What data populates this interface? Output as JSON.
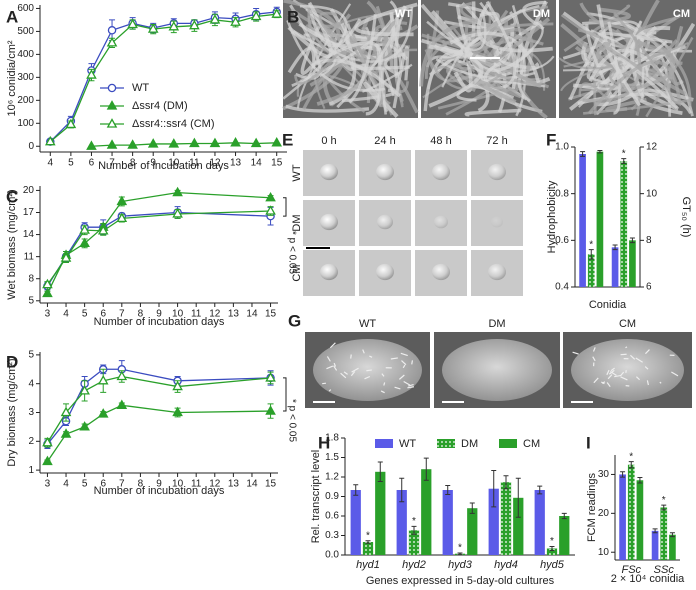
{
  "panels": [
    "A",
    "B",
    "C",
    "D",
    "E",
    "F",
    "G",
    "H",
    "I"
  ],
  "images": {
    "B": {
      "labels": [
        "WT",
        "DM",
        "CM"
      ]
    },
    "E": {
      "columns": [
        "0 h",
        "24 h",
        "48 h",
        "72 h"
      ],
      "rows": [
        "WT",
        "DM",
        "CM"
      ]
    },
    "G": {
      "labels": [
        "WT",
        "DM",
        "CM"
      ]
    }
  },
  "chart_data": [
    {
      "type": "line",
      "ylabel": "10⁶ conidia/cm²",
      "xlabel": "Number of incubation days",
      "legend": "center",
      "x": [
        4,
        5,
        6,
        7,
        8,
        9,
        10,
        11,
        12,
        13,
        14,
        15
      ],
      "xlim": [
        3.5,
        15.5
      ],
      "xticks": [
        4,
        5,
        6,
        7,
        8,
        9,
        10,
        11,
        12,
        13,
        14,
        15
      ],
      "ylim": [
        -25,
        615
      ],
      "yticks": [
        0,
        100,
        200,
        300,
        400,
        500,
        600
      ],
      "series": [
        {
          "name": "WT",
          "color": "#3b4cc0",
          "marker": "circle-open",
          "values": [
            20,
            110,
            330,
            505,
            535,
            515,
            535,
            535,
            560,
            555,
            575,
            585
          ],
          "errors": [
            5,
            20,
            30,
            45,
            25,
            20,
            20,
            15,
            25,
            25,
            25,
            20
          ]
        },
        {
          "name": "Δssr4 (DM)",
          "color": "#2aa02a",
          "marker": "triangle-filled",
          "values": [
            null,
            null,
            0,
            5,
            5,
            10,
            10,
            12,
            12,
            15,
            12,
            15
          ]
        },
        {
          "name": "Δssr4::ssr4 (CM)",
          "color": "#2aa02a",
          "marker": "triangle-open",
          "values": [
            20,
            95,
            310,
            450,
            530,
            510,
            520,
            525,
            550,
            540,
            565,
            575
          ],
          "errors": [
            5,
            15,
            25,
            20,
            20,
            20,
            25,
            25,
            25,
            20,
            20,
            15
          ]
        }
      ]
    },
    {
      "type": "line",
      "ylabel": "Wet biomass (mg/cm²)",
      "xlabel": "Number of incubation days",
      "annotation": "* p < 0.05",
      "x": [
        3,
        4,
        5,
        6,
        7,
        10,
        15
      ],
      "xlim": [
        2.6,
        15.4
      ],
      "xticks": [
        3,
        4,
        5,
        6,
        7,
        8,
        9,
        10,
        11,
        12,
        13,
        14,
        15
      ],
      "ylim": [
        4.7,
        20.6
      ],
      "yticks": [
        5,
        8,
        11,
        14,
        17,
        20
      ],
      "series": [
        {
          "color": "#3b4cc0",
          "marker": "circle-open",
          "values": [
            7.0,
            11.0,
            15.0,
            15.0,
            16.5,
            17.0,
            16.5
          ],
          "errors": [
            0.5,
            0.7,
            0.6,
            1.0,
            0.4,
            0.8,
            1.2
          ]
        },
        {
          "color": "#2aa02a",
          "marker": "triangle-filled",
          "values": [
            6.0,
            11.2,
            12.8,
            15.0,
            18.5,
            19.7,
            19.0
          ],
          "errors": [
            0.3,
            0.5,
            0.6,
            0.5,
            0.6,
            0.3,
            0.3
          ]
        },
        {
          "color": "#2aa02a",
          "marker": "triangle-open",
          "values": [
            7.2,
            10.8,
            14.6,
            14.5,
            16.2,
            16.8,
            17.2
          ],
          "errors": [
            0.4,
            0.6,
            0.6,
            0.6,
            0.5,
            0.6,
            0.6
          ]
        }
      ]
    },
    {
      "type": "line",
      "ylabel": "Dry biomass (mg/cm²)",
      "xlabel": "Number of incubation days",
      "annotation": "* p < 0.05",
      "x": [
        3,
        4,
        5,
        6,
        7,
        10,
        15
      ],
      "xlim": [
        2.6,
        15.4
      ],
      "xticks": [
        3,
        4,
        5,
        6,
        7,
        8,
        9,
        10,
        11,
        12,
        13,
        14,
        15
      ],
      "ylim": [
        0.9,
        5.1
      ],
      "yticks": [
        1,
        2,
        3,
        4,
        5
      ],
      "series": [
        {
          "color": "#3b4cc0",
          "marker": "circle-open",
          "values": [
            1.9,
            2.7,
            4.0,
            4.5,
            4.5,
            4.1,
            4.2
          ],
          "errors": [
            0.15,
            0.15,
            0.25,
            0.15,
            0.3,
            0.15,
            0.25
          ]
        },
        {
          "color": "#2aa02a",
          "marker": "triangle-filled",
          "values": [
            1.3,
            2.25,
            2.5,
            2.95,
            3.25,
            3.0,
            3.05
          ],
          "errors": [
            0.05,
            0.08,
            0.1,
            0.08,
            0.08,
            0.15,
            0.25
          ]
        },
        {
          "color": "#2aa02a",
          "marker": "triangle-open",
          "values": [
            1.95,
            3.0,
            3.75,
            4.1,
            4.25,
            3.9,
            4.2
          ],
          "errors": [
            0.15,
            0.3,
            0.35,
            0.4,
            0.2,
            0.2,
            0.2
          ]
        }
      ]
    },
    {
      "type": "bar",
      "ylabel": "Hydrophobicity",
      "y2label": "GT₅₀ (h)",
      "xlabel": "Conidia",
      "annotations": [
        "*",
        "*"
      ],
      "categories": [
        null,
        null
      ],
      "ylim": [
        0.4,
        1.0
      ],
      "yticks": [
        0.4,
        0.6,
        0.8,
        {
          "value": 1.0,
          "label": "1.0"
        }
      ],
      "y2lim": [
        6,
        12
      ],
      "y2ticks": [
        6,
        8,
        10,
        12
      ],
      "series": [
        {
          "color": "#5b5be8",
          "values": [
            0.97,
            null
          ],
          "errors": [
            0.01,
            null
          ]
        },
        {
          "color": "#2aa02a",
          "pattern": "dots",
          "values": [
            0.54,
            null
          ],
          "errors": [
            0.02,
            null
          ]
        },
        {
          "color": "#2aa02a",
          "values": [
            0.98,
            null
          ],
          "errors": [
            0.005,
            null
          ]
        },
        {
          "color": "#5b5be8",
          "axis": "y2",
          "values": [
            null,
            7.7
          ],
          "errors": [
            null,
            0.1
          ]
        },
        {
          "color": "#2aa02a",
          "pattern": "dots",
          "axis": "y2",
          "values": [
            null,
            11.4
          ],
          "errors": [
            null,
            0.1
          ]
        },
        {
          "color": "#2aa02a",
          "axis": "y2",
          "values": [
            null,
            8.0
          ],
          "errors": [
            null,
            0.1
          ]
        }
      ]
    },
    {
      "type": "bar",
      "ylabel": "Rel. transcript level",
      "xlabel": "Genes expressed in 5-day-old cultures",
      "legend": "top",
      "annotations": [
        "*",
        "*",
        "*",
        "*"
      ],
      "categories": [
        "hyd1",
        "hyd2",
        "hyd3",
        "hyd4",
        "hyd5"
      ],
      "ylim": [
        0,
        1.8
      ],
      "yticks": [
        {
          "value": 0,
          "label": "0.0"
        },
        0.3,
        0.6,
        0.9,
        1.2,
        1.5,
        1.8
      ],
      "series": [
        {
          "name": "WT",
          "color": "#5b5be8",
          "values": [
            1.0,
            1.0,
            1.0,
            1.02,
            1.0
          ],
          "errors": [
            0.08,
            0.18,
            0.07,
            0.28,
            0.06
          ]
        },
        {
          "name": "DM",
          "color": "#2aa02a",
          "pattern": "dots",
          "values": [
            0.2,
            0.38,
            0.02,
            1.12,
            0.1
          ],
          "errors": [
            0.02,
            0.06,
            0.01,
            0.1,
            0.03
          ]
        },
        {
          "name": "CM",
          "color": "#2aa02a",
          "values": [
            1.28,
            1.32,
            0.72,
            0.88,
            0.6
          ],
          "errors": [
            0.15,
            0.17,
            0.08,
            0.3,
            0.04
          ]
        }
      ]
    },
    {
      "type": "bar",
      "ylabel": "FCM readings",
      "xlabel": "2 × 10⁴ conidia",
      "annotations": [
        "*",
        "*"
      ],
      "categories": [
        "FSc",
        "SSc"
      ],
      "ylim": [
        8,
        35
      ],
      "yticks": [
        10,
        20,
        30
      ],
      "series": [
        {
          "color": "#5b5be8",
          "values": [
            30,
            15.5
          ],
          "errors": [
            0.7,
            0.5
          ]
        },
        {
          "color": "#2aa02a",
          "pattern": "dots",
          "values": [
            32.5,
            21.5
          ],
          "errors": [
            0.8,
            0.6
          ]
        },
        {
          "color": "#2aa02a",
          "values": [
            28.5,
            14.5
          ],
          "errors": [
            0.7,
            0.5
          ]
        }
      ]
    }
  ]
}
